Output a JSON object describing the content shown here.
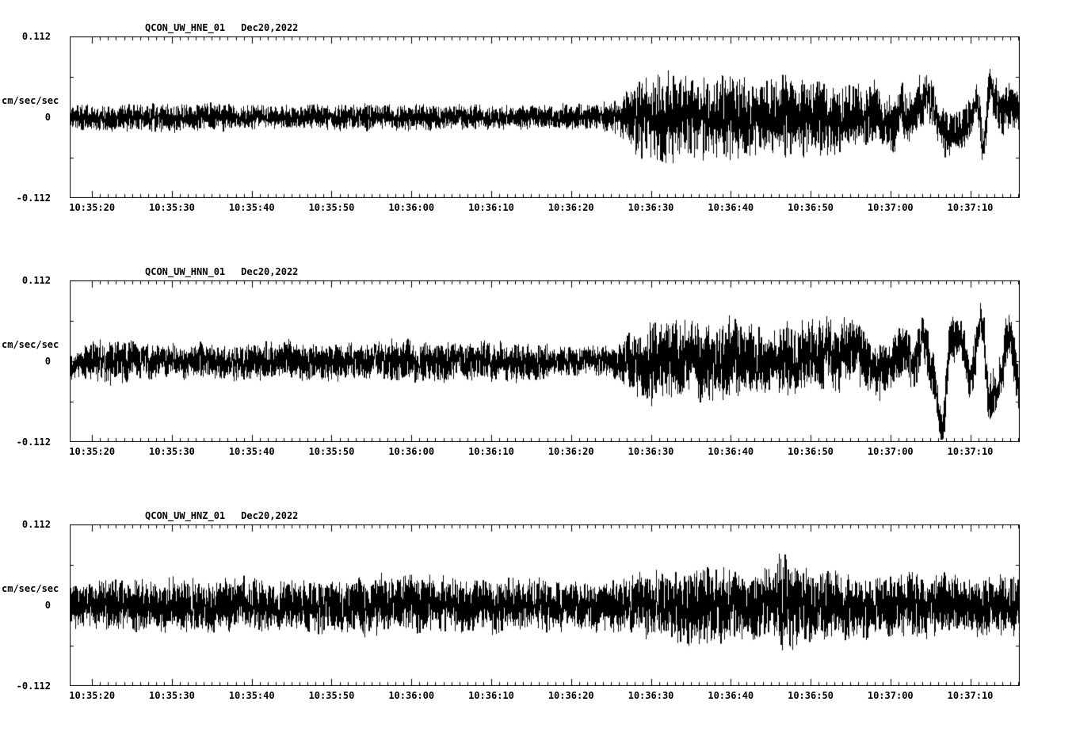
{
  "colors": {
    "trace": "#000000",
    "background": "#ffffff"
  },
  "chart_data": [
    {
      "type": "line",
      "title": "QCON_UW_HNE_01",
      "date_label": "Dec20,2022",
      "ylabel": "cm/sec/sec",
      "ylim": [
        -0.112,
        0.112
      ],
      "ytick_labels": [
        "0.112",
        "0",
        "-0.112"
      ],
      "xticks": [
        "10:35:20",
        "10:35:30",
        "10:35:40",
        "10:35:50",
        "10:36:00",
        "10:36:10",
        "10:36:20",
        "10:36:30",
        "10:36:40",
        "10:36:50",
        "10:37:00",
        "10:37:10"
      ],
      "duration_s": 119,
      "first_tick_offset_s": 2.8,
      "tick_interval_s": 10,
      "seed": 11,
      "lowfreq_period_s": 1.6,
      "noise_env": {
        "t": [
          0,
          10,
          20,
          30,
          40,
          50,
          60,
          66,
          69,
          71,
          74,
          78,
          82,
          86,
          90,
          95,
          100,
          105,
          110,
          115,
          119
        ],
        "a": [
          0.015,
          0.017,
          0.016,
          0.015,
          0.016,
          0.015,
          0.015,
          0.016,
          0.025,
          0.05,
          0.058,
          0.048,
          0.055,
          0.045,
          0.05,
          0.042,
          0.038,
          0.034,
          0.028,
          0.026,
          0.03
        ]
      },
      "lowfreq_env": {
        "t": [
          0,
          60,
          95,
          100,
          104,
          108,
          112,
          116,
          119
        ],
        "a": [
          0.002,
          0.002,
          0.004,
          0.008,
          0.02,
          0.032,
          0.028,
          0.045,
          0.02
        ]
      }
    },
    {
      "type": "line",
      "title": "QCON_UW_HNN_01",
      "date_label": "Dec20,2022",
      "ylabel": "cm/sec/sec",
      "ylim": [
        -0.112,
        0.112
      ],
      "ytick_labels": [
        "0.112",
        "0",
        "-0.112"
      ],
      "xticks": [
        "10:35:20",
        "10:35:30",
        "10:35:40",
        "10:35:50",
        "10:36:00",
        "10:36:10",
        "10:36:20",
        "10:36:30",
        "10:36:40",
        "10:36:50",
        "10:37:00",
        "10:37:10"
      ],
      "duration_s": 119,
      "first_tick_offset_s": 2.8,
      "tick_interval_s": 10,
      "seed": 22,
      "lowfreq_period_s": 2.4,
      "noise_env": {
        "t": [
          0,
          3,
          6,
          9,
          14,
          20,
          28,
          35,
          42,
          50,
          58,
          64,
          68,
          70,
          73,
          77,
          82,
          87,
          92,
          97,
          102,
          107,
          112,
          116,
          119
        ],
        "a": [
          0.018,
          0.024,
          0.028,
          0.022,
          0.02,
          0.022,
          0.024,
          0.022,
          0.025,
          0.024,
          0.022,
          0.018,
          0.02,
          0.035,
          0.05,
          0.045,
          0.05,
          0.042,
          0.045,
          0.04,
          0.035,
          0.03,
          0.028,
          0.03,
          0.03
        ]
      },
      "lowfreq_env": {
        "t": [
          0,
          70,
          85,
          95,
          100,
          104,
          107,
          109,
          111,
          113,
          115,
          117,
          119
        ],
        "a": [
          0.003,
          0.003,
          0.008,
          0.012,
          0.015,
          0.03,
          0.06,
          0.085,
          0.07,
          0.045,
          0.06,
          0.04,
          0.05
        ]
      }
    },
    {
      "type": "line",
      "title": "QCON_UW_HNZ_01",
      "date_label": "Dec20,2022",
      "ylabel": "cm/sec/sec",
      "ylim": [
        -0.112,
        0.112
      ],
      "ytick_labels": [
        "0.112",
        "0",
        "-0.112"
      ],
      "xticks": [
        "10:35:20",
        "10:35:30",
        "10:35:40",
        "10:35:50",
        "10:36:00",
        "10:36:10",
        "10:36:20",
        "10:36:30",
        "10:36:40",
        "10:36:50",
        "10:37:00",
        "10:37:10"
      ],
      "duration_s": 119,
      "first_tick_offset_s": 2.8,
      "tick_interval_s": 10,
      "seed": 33,
      "lowfreq_period_s": 2.0,
      "noise_env": {
        "t": [
          0,
          5,
          12,
          20,
          27,
          35,
          42,
          50,
          57,
          64,
          70,
          74,
          78,
          83,
          88,
          89.5,
          90.5,
          92,
          96,
          100,
          105,
          110,
          114,
          119
        ],
        "a": [
          0.026,
          0.03,
          0.032,
          0.034,
          0.03,
          0.034,
          0.036,
          0.033,
          0.032,
          0.03,
          0.034,
          0.042,
          0.046,
          0.044,
          0.042,
          0.075,
          0.05,
          0.045,
          0.042,
          0.038,
          0.04,
          0.036,
          0.038,
          0.036
        ]
      },
      "lowfreq_env": {
        "t": [
          0,
          119
        ],
        "a": [
          0.003,
          0.003
        ]
      }
    }
  ]
}
